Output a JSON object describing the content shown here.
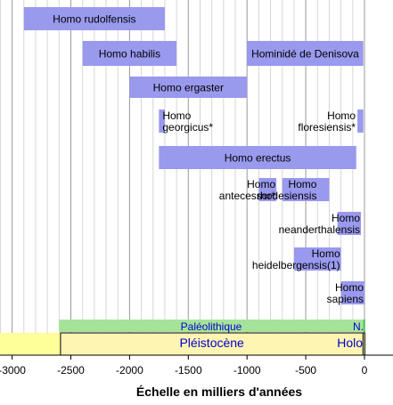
{
  "chart_data": {
    "type": "bar",
    "xlabel": "Échelle en milliers d'années",
    "x_range": [
      -3100,
      0
    ],
    "x_ticks": [
      -3000,
      -2500,
      -2000,
      -1500,
      -1000,
      -500,
      0
    ],
    "x_tick_labels": [
      "-3000",
      "-2500",
      "-2000",
      "-1500",
      "-1000",
      "-500",
      "0"
    ],
    "grid": "vertical every 100",
    "bar_color": "#9999ee",
    "species": [
      {
        "lines": [
          "Homo rudolfensis"
        ],
        "start": -2900,
        "end": -1700,
        "label_align": "center"
      },
      {
        "lines": [
          "Homo habilis"
        ],
        "start": -2400,
        "end": -1600,
        "label_align": "center"
      },
      {
        "lines": [
          "Hominidé de Denisova"
        ],
        "start": -1000,
        "end": -10,
        "label_align": "center"
      },
      {
        "lines": [
          "Homo ergaster"
        ],
        "start": -2000,
        "end": -1000,
        "label_align": "center"
      },
      {
        "lines": [
          "Homo",
          "georgicus*"
        ],
        "start": -1750,
        "end": -1700,
        "label_align": "left"
      },
      {
        "lines": [
          "Homo",
          "floresiensis*"
        ],
        "start": -60,
        "end": -10,
        "label_align": "right"
      },
      {
        "lines": [
          "Homo erectus"
        ],
        "start": -1750,
        "end": -70,
        "label_align": "center"
      },
      {
        "lines": [
          "Homo",
          "antecessor*"
        ],
        "start": -900,
        "end": -750,
        "label_align": "right"
      },
      {
        "lines": [
          "Homo",
          "rhodesiensis"
        ],
        "start": -700,
        "end": -300,
        "label_align": "right"
      },
      {
        "lines": [
          "Homo",
          "neanderthalensis"
        ],
        "start": -230,
        "end": -30,
        "label_align": "right"
      },
      {
        "lines": [
          "Homo",
          "heidelbergensis(1)"
        ],
        "start": -600,
        "end": -200,
        "label_align": "right"
      },
      {
        "lines": [
          "Homo",
          "sapiens"
        ],
        "start": -200,
        "end": 0,
        "label_align": "right"
      }
    ],
    "periods": [
      {
        "label": "Paléolithique",
        "start": -2600,
        "end": -10,
        "color": "#a6e39a",
        "text_color": "#0000cc"
      },
      {
        "label": "N.",
        "start": -10,
        "end": 0,
        "color": "#44bb44",
        "text_color": "#0000cc"
      }
    ],
    "epochs": [
      {
        "label": "Pléistocène",
        "start": -2588,
        "end": -12,
        "color": "#fff5b3",
        "text_color": "#0000cc"
      },
      {
        "label": "Holo",
        "start": -12,
        "end": 0,
        "color": "#fff5b3",
        "text_color": "#0000cc"
      }
    ],
    "pre_epoch_color": "#ffff99"
  }
}
